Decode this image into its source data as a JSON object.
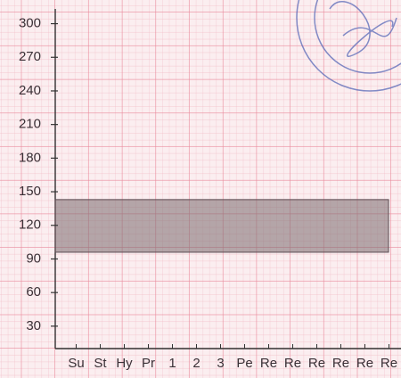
{
  "chart_data": {
    "type": "band",
    "categories": [
      "Su",
      "St",
      "Hy",
      "Pr",
      "1",
      "2",
      "3",
      "Pe",
      "Re",
      "Re",
      "Re",
      "Re",
      "Re",
      "Re"
    ],
    "band": {
      "low": 96,
      "high": 143
    },
    "color": "#7a6a6e",
    "ylim": [
      10,
      310
    ],
    "yticks": [
      30,
      60,
      90,
      120,
      150,
      180,
      210,
      240,
      270,
      300
    ]
  }
}
